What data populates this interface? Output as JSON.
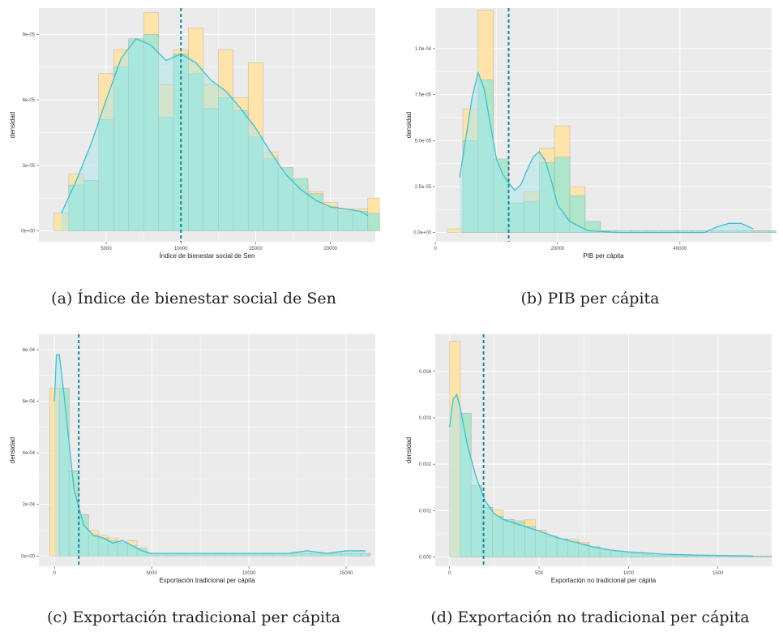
{
  "chart_data": [
    {
      "type": "histogram",
      "panel": "a",
      "caption": "(a) Índice de bienestar social de Sen",
      "xlabel": "Índice de bienestar social de Sen",
      "ylabel": "densidad",
      "xlim": [
        500,
        23000
      ],
      "ylim": [
        -5e-06,
        0.000102
      ],
      "xticks": [
        5000,
        10000,
        15000,
        20000
      ],
      "xtick_labels": [
        "5000",
        "10000",
        "15000",
        "20000"
      ],
      "yticks": [
        0,
        3e-05,
        6e-05,
        9e-05
      ],
      "ytick_labels": [
        "0e+00",
        "3e-05",
        "6e-05",
        "9e-05"
      ],
      "bin_start": 1500,
      "bin_width": 1000,
      "series": [
        {
          "name": "",
          "color": "#FFE3A8",
          "values": [
            8e-06,
            2.6e-05,
            2.3e-05,
            7.2e-05,
            8.3e-05,
            8.7e-05,
            0.0001,
            6.7e-05,
            8.3e-05,
            9.3e-05,
            6.7e-05,
            8.3e-05,
            6.1e-05,
            7.7e-05,
            3.6e-05,
            2.3e-05,
            2.1e-05,
            1.8e-05,
            1.3e-05,
            1e-05,
            1e-05,
            1.5e-05
          ]
        },
        {
          "name": "",
          "color": "#A4E6CC",
          "values": [
            0.0,
            2.1e-05,
            2.3e-05,
            5.1e-05,
            7.5e-05,
            8.8e-05,
            9e-05,
            5.2e-05,
            8.1e-05,
            7.2e-05,
            5.6e-05,
            6.1e-05,
            5.5e-05,
            4.3e-05,
            3.3e-05,
            2.9e-05,
            2.4e-05,
            1.7e-05,
            1.1e-05,
            9e-06,
            9e-06,
            8e-06
          ]
        }
      ],
      "density_x": [
        2000,
        3000,
        4000,
        5000,
        6000,
        7000,
        8000,
        9000,
        10000,
        11000,
        12000,
        13000,
        14000,
        15000,
        16000,
        17000,
        18000,
        19000,
        20000,
        21000,
        22000,
        22500
      ],
      "density_y": [
        8e-06,
        2.3e-05,
        4e-05,
        6e-05,
        7.9e-05,
        8.8e-05,
        8.5e-05,
        7.8e-05,
        8.1e-05,
        7.7e-05,
        6.9e-05,
        6.4e-05,
        5.6e-05,
        4.7e-05,
        3.6e-05,
        2.6e-05,
        1.9e-05,
        1.4e-05,
        1.1e-05,
        1e-05,
        9e-06,
        7e-06
      ],
      "vline": 10000
    },
    {
      "type": "histogram",
      "panel": "b",
      "caption": "(b) PIB per cápita",
      "xlabel": "PIB per cápita",
      "ylabel": "densidad",
      "xlim": [
        0,
        55000
      ],
      "ylim": [
        -5e-06,
        0.000122
      ],
      "xticks": [
        0,
        20000,
        40000
      ],
      "xtick_labels": [
        "0",
        "20000",
        "40000"
      ],
      "yticks": [
        0,
        2.5e-05,
        5e-05,
        7.5e-05,
        0.0001
      ],
      "ytick_labels": [
        "0.0e+00",
        "2.5e-05",
        "5.0e-05",
        "7.5e-05",
        "1.0e-04"
      ],
      "bin_start": 2000,
      "bin_width": 2500,
      "series": [
        {
          "name": "",
          "color": "#FFE3A8",
          "values": [
            2e-06,
            6.7e-05,
            0.000121,
            3.8e-05,
            1.6e-05,
            2.2e-05,
            4.6e-05,
            5.8e-05,
            2.5e-05,
            6e-06,
            1e-06,
            1e-06,
            1e-06,
            1e-06,
            1e-06,
            1e-06,
            1e-06,
            1e-06,
            1e-06,
            1e-06,
            1e-06,
            1e-06,
            1e-06,
            1e-06,
            1e-06,
            1e-06,
            1e-06,
            1e-06,
            5e-06,
            5e-06
          ]
        },
        {
          "name": "",
          "color": "#A4E6CC",
          "values": [
            0.0,
            5e-05,
            8.3e-05,
            4e-05,
            1.6e-05,
            1.7e-05,
            3.8e-05,
            4.1e-05,
            2e-05,
            6e-06,
            1e-06,
            1e-06,
            1e-06,
            1e-06,
            1e-06,
            1e-06,
            1e-06,
            1e-06,
            1e-06,
            1e-06,
            1e-06,
            1e-06,
            1e-06,
            1e-06,
            1e-06,
            1e-06,
            1e-06,
            1e-06,
            4e-06,
            4e-06
          ]
        }
      ],
      "density_x": [
        4000,
        6000,
        7000,
        8000,
        9000,
        10000,
        11000,
        12000,
        13000,
        14000,
        15000,
        16000,
        17000,
        18000,
        19000,
        20000,
        22000,
        25000,
        30000,
        35000,
        40000,
        44000,
        46000,
        48000,
        49000,
        50000,
        52000
      ],
      "density_y": [
        3e-05,
        7.3e-05,
        8.7e-05,
        7.8e-05,
        5.9e-05,
        4e-05,
        3.2e-05,
        2.7e-05,
        2.3e-05,
        2.6e-05,
        3.4e-05,
        4.1e-05,
        4.4e-05,
        3.9e-05,
        2.8e-05,
        1.5e-05,
        6e-06,
        1e-06,
        0.0,
        0.0,
        0.0,
        0.0,
        3e-06,
        5e-06,
        5e-06,
        5e-06,
        2e-06
      ],
      "vline": 12000
    },
    {
      "type": "histogram",
      "panel": "c",
      "caption": "(c) Exportación tradicional per cápita",
      "xlabel": "Exportación tradicional per cápita",
      "ylabel": "densidad",
      "xlim": [
        -800,
        16500
      ],
      "ylim": [
        -4e-05,
        0.00086
      ],
      "xticks": [
        0,
        5000,
        10000,
        15000
      ],
      "xtick_labels": [
        "0",
        "5000",
        "10000",
        "15000"
      ],
      "yticks": [
        0,
        0.0002,
        0.0004,
        0.0006,
        0.0008
      ],
      "ytick_labels": [
        "0e+00",
        "2e-04",
        "4e-04",
        "6e-04",
        "8e-04"
      ],
      "bin_start": -250,
      "bin_width": 500,
      "series": [
        {
          "name": "",
          "color": "#FFE3A8",
          "values": [
            0.00065,
            0.00065,
            0.00033,
            0.00016,
            0.0001,
            8e-05,
            7e-05,
            5e-05,
            6e-05,
            3e-05,
            1e-05,
            1e-05,
            1e-05,
            1e-05,
            1e-05,
            1e-05,
            1e-05,
            1e-05,
            1e-05,
            1e-05,
            1e-05,
            1e-05,
            1e-05,
            1e-05,
            1e-05,
            1e-05,
            1e-05,
            1e-05,
            1e-05,
            1e-05,
            1e-05,
            1e-05,
            1e-05
          ]
        },
        {
          "name": "",
          "color": "#A4E6CC",
          "values": [
            0.0,
            0.00065,
            0.00033,
            0.00016,
            8e-05,
            7e-05,
            6e-05,
            5e-05,
            4e-05,
            3e-05,
            1e-05,
            1e-05,
            1e-05,
            1e-05,
            1e-05,
            1e-05,
            1e-05,
            1e-05,
            1e-05,
            1e-05,
            1e-05,
            1e-05,
            1e-05,
            1e-05,
            1e-05,
            1e-05,
            1e-05,
            1e-05,
            1e-05,
            1e-05,
            1e-05,
            1e-05,
            1e-05
          ]
        }
      ],
      "density_x": [
        0,
        100,
        250,
        500,
        750,
        1000,
        1500,
        2000,
        2500,
        3000,
        3500,
        4000,
        4500,
        5000,
        6000,
        8000,
        10000,
        12000,
        13000,
        14000,
        15000,
        16000
      ],
      "density_y": [
        0.0006,
        0.00078,
        0.00078,
        0.00062,
        0.00044,
        0.00026,
        0.00012,
        8e-05,
        7e-05,
        5e-05,
        6e-05,
        4e-05,
        2e-05,
        1e-05,
        1e-05,
        1e-05,
        1e-05,
        1e-05,
        2e-05,
        1e-05,
        2e-05,
        2e-05
      ],
      "vline": 1250
    },
    {
      "type": "histogram",
      "panel": "d",
      "caption": "(d) Exportación no tradicional per cápita",
      "xlabel": "Exportación no tradicional per cápita",
      "ylabel": "densidad",
      "xlim": [
        -80,
        1800
      ],
      "ylim": [
        -0.0002,
        0.0048
      ],
      "xticks": [
        0,
        500,
        1000,
        1500
      ],
      "xtick_labels": [
        "0",
        "500",
        "1000",
        "1500"
      ],
      "yticks": [
        0,
        0.001,
        0.002,
        0.003,
        0.004
      ],
      "ytick_labels": [
        "0.000",
        "0.001",
        "0.002",
        "0.003",
        "0.004"
      ],
      "bin_start": -60,
      "bin_width": 60,
      "series": [
        {
          "name": "",
          "color": "#FFE3A8",
          "values": [
            0.0,
            0.00465,
            0.0031,
            0.00154,
            0.00107,
            0.00101,
            0.00081,
            0.00078,
            0.0008,
            0.00058,
            0.00045,
            0.00039,
            0.00038,
            0.00032,
            0.00022,
            0.00015,
            0.00012,
            0.0001,
            8e-05,
            6e-05,
            4e-05,
            4e-05,
            4e-05,
            4e-05,
            3e-05,
            3e-05,
            3e-05,
            2e-05,
            2e-05,
            2e-05,
            2e-05
          ]
        },
        {
          "name": "",
          "color": "#A4E6CC",
          "values": [
            0.0,
            0.0,
            0.0031,
            0.00154,
            0.00107,
            0.00088,
            0.00081,
            0.00076,
            0.00066,
            0.00052,
            0.00045,
            0.00039,
            0.00033,
            0.00028,
            0.00022,
            0.00015,
            0.00012,
            0.0001,
            8e-05,
            6e-05,
            4e-05,
            4e-05,
            4e-05,
            3e-05,
            3e-05,
            3e-05,
            3e-05,
            2e-05,
            2e-05,
            2e-05,
            2e-05
          ]
        }
      ],
      "density_x": [
        0,
        20,
        40,
        60,
        80,
        100,
        150,
        200,
        250,
        300,
        400,
        500,
        600,
        700,
        800,
        900,
        1000,
        1200,
        1400,
        1600,
        1700
      ],
      "density_y": [
        0.0028,
        0.0034,
        0.0035,
        0.0032,
        0.0028,
        0.0024,
        0.0017,
        0.0012,
        0.00093,
        0.00081,
        0.00068,
        0.00056,
        0.00042,
        0.00032,
        0.00022,
        0.00015,
        0.00011,
        6e-05,
        4e-05,
        3e-05,
        2e-05
      ],
      "vline": 190
    }
  ],
  "colors": {
    "panel_bg": "#EBEBEB",
    "grid": "#FFFFFF",
    "hist_a": "#FFE3A8",
    "hist_b": "#A4E6CC",
    "density_fill": "#A6E6EE",
    "density_line": "#3FBFCB",
    "vline": "#17889A",
    "bar_stroke": "#8C8C8C"
  }
}
